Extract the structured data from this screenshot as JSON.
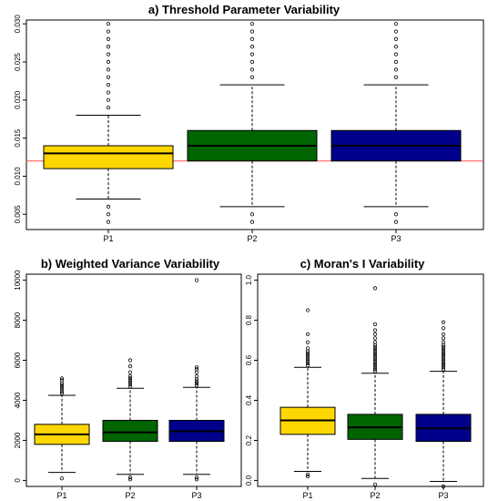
{
  "chart_data": [
    {
      "type": "boxplot",
      "title": "a) Threshold Parameter Variability",
      "categories": [
        "P1",
        "P2",
        "P3"
      ],
      "ylim": [
        0.003,
        0.0305
      ],
      "yticks": [
        0.005,
        0.01,
        0.015,
        0.02,
        0.025,
        0.03
      ],
      "ytick_labels": [
        "0.005",
        "0.010",
        "0.015",
        "0.020",
        "0.025",
        "0.030"
      ],
      "reference_line": {
        "y": 0.012,
        "color": "#ff4d4d"
      },
      "boxes": [
        {
          "category": "P1",
          "color": "#ffd700",
          "whisker_low": 0.007,
          "q1": 0.011,
          "median": 0.013,
          "q3": 0.014,
          "whisker_high": 0.018,
          "outliers": [
            0.004,
            0.005,
            0.006,
            0.019,
            0.02,
            0.021,
            0.022,
            0.023,
            0.024,
            0.025,
            0.026,
            0.027,
            0.028,
            0.029,
            0.03
          ]
        },
        {
          "category": "P2",
          "color": "#006400",
          "whisker_low": 0.006,
          "q1": 0.012,
          "median": 0.014,
          "q3": 0.016,
          "whisker_high": 0.022,
          "outliers": [
            0.004,
            0.005,
            0.023,
            0.024,
            0.025,
            0.026,
            0.027,
            0.028,
            0.029,
            0.03
          ]
        },
        {
          "category": "P3",
          "color": "#00008b",
          "whisker_low": 0.006,
          "q1": 0.012,
          "median": 0.014,
          "q3": 0.016,
          "whisker_high": 0.022,
          "outliers": [
            0.004,
            0.005,
            0.023,
            0.024,
            0.025,
            0.026,
            0.027,
            0.028,
            0.029,
            0.03
          ]
        }
      ]
    },
    {
      "type": "boxplot",
      "title": "b) Weighted Variance Variability",
      "categories": [
        "P1",
        "P2",
        "P3"
      ],
      "ylim": [
        -300,
        10300
      ],
      "yticks": [
        0,
        2000,
        4000,
        6000,
        8000,
        10000
      ],
      "ytick_labels": [
        "0",
        "2000",
        "4000",
        "6000",
        "8000",
        "10000"
      ],
      "boxes": [
        {
          "category": "P1",
          "color": "#ffd700",
          "whisker_low": 400,
          "q1": 1800,
          "median": 2300,
          "q3": 2800,
          "whisker_high": 4250,
          "outliers": [
            100,
            4350,
            4450,
            4550,
            4650,
            4750,
            4850,
            5000,
            5100
          ]
        },
        {
          "category": "P2",
          "color": "#006400",
          "whisker_low": 300,
          "q1": 1950,
          "median": 2400,
          "q3": 3000,
          "whisker_high": 4600,
          "outliers": [
            50,
            150,
            4700,
            4800,
            4900,
            5000,
            5100,
            5200,
            5400,
            5700,
            6000
          ]
        },
        {
          "category": "P3",
          "color": "#00008b",
          "whisker_low": 300,
          "q1": 1950,
          "median": 2450,
          "q3": 3000,
          "whisker_high": 4650,
          "outliers": [
            50,
            150,
            4750,
            4850,
            4950,
            5050,
            5200,
            5400,
            5550,
            5650,
            10000
          ]
        }
      ]
    },
    {
      "type": "boxplot",
      "title": "c) Moran's I Variability",
      "categories": [
        "P1",
        "P2",
        "P3"
      ],
      "ylim": [
        -0.03,
        1.03
      ],
      "yticks": [
        0.0,
        0.2,
        0.4,
        0.6,
        0.8,
        1.0
      ],
      "ytick_labels": [
        "0.0",
        "0.2",
        "0.4",
        "0.6",
        "0.8",
        "1.0"
      ],
      "boxes": [
        {
          "category": "P1",
          "color": "#ffd700",
          "whisker_low": 0.045,
          "q1": 0.23,
          "median": 0.3,
          "q3": 0.365,
          "whisker_high": 0.565,
          "outliers": [
            0.02,
            0.03,
            0.575,
            0.585,
            0.595,
            0.605,
            0.615,
            0.625,
            0.635,
            0.645,
            0.66,
            0.69,
            0.73,
            0.85
          ]
        },
        {
          "category": "P2",
          "color": "#006400",
          "whisker_low": 0.01,
          "q1": 0.205,
          "median": 0.265,
          "q3": 0.33,
          "whisker_high": 0.535,
          "outliers": [
            -0.02,
            0.545,
            0.555,
            0.565,
            0.575,
            0.585,
            0.595,
            0.605,
            0.615,
            0.625,
            0.635,
            0.645,
            0.655,
            0.665,
            0.675,
            0.69,
            0.71,
            0.73,
            0.75,
            0.78,
            0.96
          ]
        },
        {
          "category": "P3",
          "color": "#00008b",
          "whisker_low": -0.005,
          "q1": 0.195,
          "median": 0.26,
          "q3": 0.33,
          "whisker_high": 0.545,
          "outliers": [
            -0.03,
            0.555,
            0.565,
            0.575,
            0.585,
            0.595,
            0.605,
            0.615,
            0.625,
            0.635,
            0.645,
            0.655,
            0.665,
            0.675,
            0.69,
            0.71,
            0.73,
            0.76,
            0.79
          ]
        }
      ]
    }
  ]
}
